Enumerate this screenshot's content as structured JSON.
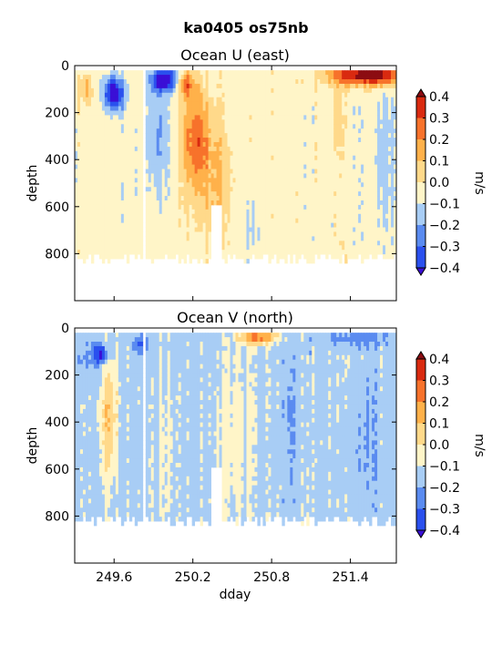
{
  "figure": {
    "suptitle": "ka0405 os75nb"
  },
  "colors": {
    "levels": [
      "#3a0fd6",
      "#2a50ee",
      "#5a8bf0",
      "#a8cdf5",
      "#dcecf8",
      "#fff5c8",
      "#ffd98a",
      "#ffb14a",
      "#f7722b",
      "#d92a10",
      "#8c0c12"
    ],
    "over": "#8c0c12",
    "under": "#3a0fd6",
    "nodata": "#ffffff"
  },
  "chart_data": [
    {
      "type": "heatmap",
      "title": "Ocean U (east)",
      "xlabel": "",
      "ylabel": "depth",
      "x_ticks": [
        249.6,
        250.2,
        250.8,
        251.4
      ],
      "x_tick_labels": [],
      "xlim": [
        249.3,
        251.75
      ],
      "y_ticks": [
        0,
        200,
        400,
        600,
        800
      ],
      "y_tick_labels": [
        "0",
        "200",
        "400",
        "600",
        "800"
      ],
      "ylim": [
        1000,
        0
      ],
      "data_depth_top": 20,
      "colorbar": {
        "label": "m/s",
        "levels": [
          -0.4,
          -0.3,
          -0.2,
          -0.1,
          0.0,
          0.1,
          0.2,
          0.3,
          0.4
        ],
        "tick_labels": [
          "−0.4",
          "−0.3",
          "−0.2",
          "−0.1",
          "0.0",
          "0.1",
          "0.2",
          "0.3",
          "0.4"
        ],
        "extend": "both"
      },
      "gaps": [
        {
          "x": [
            249.82,
            249.84
          ],
          "depth": [
            20,
            850
          ]
        },
        {
          "x": [
            250.33,
            250.42
          ],
          "depth": [
            590,
            850
          ]
        }
      ],
      "features": [
        {
          "x": 250.55,
          "depth": 90,
          "value": 0.3
        },
        {
          "x": 250.25,
          "depth": 300,
          "value": 0.2
        },
        {
          "x": 251.55,
          "depth": 60,
          "value": 0.45
        },
        {
          "x": 249.55,
          "depth": 140,
          "value": -0.4
        },
        {
          "x": 250.0,
          "depth": 40,
          "value": -0.4
        }
      ],
      "approximate_values": [
        {
          "x": 249.4,
          "depth": 100,
          "value": 0.15
        },
        {
          "x": 249.6,
          "depth": 100,
          "value": -0.35
        },
        {
          "x": 249.9,
          "depth": 300,
          "value": -0.1
        },
        {
          "x": 250.3,
          "depth": 450,
          "value": 0.15
        },
        {
          "x": 250.9,
          "depth": 400,
          "value": 0.05
        },
        {
          "x": 251.5,
          "depth": 200,
          "value": 0.1
        },
        {
          "x": 251.6,
          "depth": 700,
          "value": -0.05
        }
      ]
    },
    {
      "type": "heatmap",
      "title": "Ocean V (north)",
      "xlabel": "dday",
      "ylabel": "depth",
      "x_ticks": [
        249.6,
        250.2,
        250.8,
        251.4
      ],
      "x_tick_labels": [
        "249.6",
        "250.2",
        "250.8",
        "251.4"
      ],
      "xlim": [
        249.3,
        251.75
      ],
      "y_ticks": [
        0,
        200,
        400,
        600,
        800
      ],
      "y_tick_labels": [
        "0",
        "200",
        "400",
        "600",
        "800"
      ],
      "ylim": [
        1000,
        0
      ],
      "data_depth_top": 20,
      "colorbar": {
        "label": "m/s",
        "levels": [
          -0.4,
          -0.3,
          -0.2,
          -0.1,
          0.0,
          0.1,
          0.2,
          0.3,
          0.4
        ],
        "tick_labels": [
          "−0.4",
          "−0.3",
          "−0.2",
          "−0.1",
          "0.0",
          "0.1",
          "0.2",
          "0.3",
          "0.4"
        ],
        "extend": "both"
      },
      "gaps": [
        {
          "x": [
            249.82,
            249.84
          ],
          "depth": [
            20,
            850
          ]
        },
        {
          "x": [
            250.33,
            250.42
          ],
          "depth": [
            590,
            850
          ]
        }
      ],
      "features": [
        {
          "x": 249.55,
          "depth": 300,
          "value": 0.15
        },
        {
          "x": 249.5,
          "depth": 120,
          "value": -0.3
        },
        {
          "x": 250.7,
          "depth": 60,
          "value": 0.3
        },
        {
          "x": 251.5,
          "depth": 50,
          "value": -0.15
        }
      ],
      "approximate_values": [
        {
          "x": 249.4,
          "depth": 150,
          "value": -0.1
        },
        {
          "x": 249.9,
          "depth": 400,
          "value": -0.05
        },
        {
          "x": 250.5,
          "depth": 500,
          "value": 0.0
        },
        {
          "x": 251.0,
          "depth": 300,
          "value": -0.05
        },
        {
          "x": 251.5,
          "depth": 500,
          "value": -0.1
        }
      ]
    }
  ]
}
